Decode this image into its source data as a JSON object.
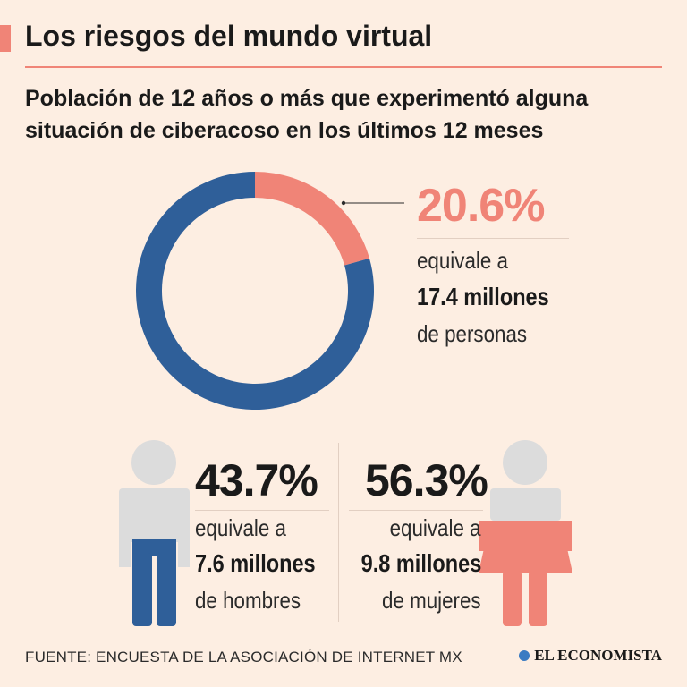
{
  "header": {
    "title": "Los riesgos del mundo virtual",
    "subtitle": "Población de 12 años o más que experimentó alguna situación de ciberacoso en los últimos 12 meses"
  },
  "chart_data": [
    {
      "type": "pie",
      "title": "",
      "slices": [
        {
          "label": "20.6%",
          "value": 20.6,
          "color": "#f08477"
        },
        {
          "label": "",
          "value": 79.4,
          "color": "#2f5f99"
        }
      ],
      "callout": {
        "percent": "20.6%",
        "line1": "equivale a",
        "line2": "17.4 millones",
        "line3": "de personas"
      }
    },
    {
      "type": "table",
      "rows": [
        {
          "group": "hombres",
          "percent": "43.7%",
          "value": 43.7,
          "line1": "equivale a",
          "line2": "7.6 millones",
          "line3": "de hombres",
          "color": "#2f5f99"
        },
        {
          "group": "mujeres",
          "percent": "56.3%",
          "value": 56.3,
          "line1": "equivale a",
          "line2": "9.8 millones",
          "line3": "de mujeres",
          "color": "#f08477"
        }
      ]
    }
  ],
  "colors": {
    "accent": "#f08477",
    "blue": "#2f5f99",
    "grey_figure": "#dcdcdc",
    "background": "#fdeee2"
  },
  "footer": {
    "source": "FUENTE: ENCUESTA DE LA ASOCIACIÓN DE INTERNET MX",
    "brand": "EL ECONOMISTA"
  }
}
